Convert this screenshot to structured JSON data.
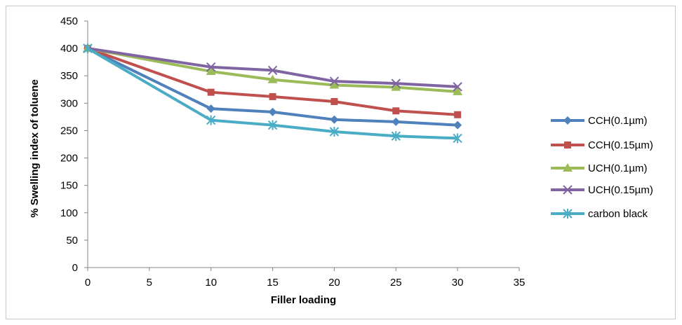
{
  "chart_data": {
    "type": "line",
    "title": "",
    "xlabel": "Filler loading",
    "ylabel": "% Swelling index of toluene",
    "xlim": [
      0,
      35
    ],
    "ylim": [
      0,
      450
    ],
    "xticks": [
      0,
      5,
      10,
      15,
      20,
      25,
      30,
      35
    ],
    "yticks": [
      0,
      50,
      100,
      150,
      200,
      250,
      300,
      350,
      400,
      450
    ],
    "x": [
      0,
      10,
      15,
      20,
      25,
      30
    ],
    "grid": false,
    "legend_position": "right",
    "series": [
      {
        "name": "CCH(0.1µm)",
        "color": "#4F81BD",
        "marker": "diamond",
        "values": [
          400,
          290,
          284,
          270,
          266,
          260
        ]
      },
      {
        "name": "CCH(0.15µm)",
        "color": "#C0504D",
        "marker": "square",
        "values": [
          400,
          320,
          312,
          303,
          286,
          279
        ]
      },
      {
        "name": "UCH(0.1µm)",
        "color": "#9BBB59",
        "marker": "triangle",
        "values": [
          400,
          358,
          343,
          333,
          329,
          321
        ]
      },
      {
        "name": "UCH(0.15µm)",
        "color": "#8064A2",
        "marker": "x",
        "values": [
          400,
          366,
          360,
          340,
          336,
          330
        ]
      },
      {
        "name": "carbon black",
        "color": "#4BACC6",
        "marker": "star",
        "values": [
          400,
          269,
          260,
          248,
          240,
          236
        ]
      }
    ]
  }
}
